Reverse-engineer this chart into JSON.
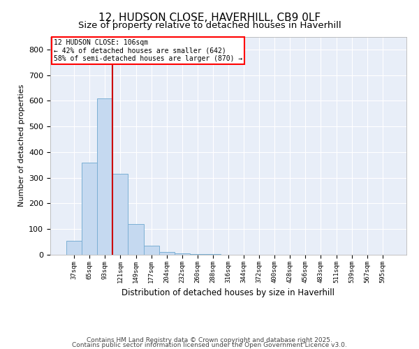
{
  "title": "12, HUDSON CLOSE, HAVERHILL, CB9 0LF",
  "subtitle": "Size of property relative to detached houses in Haverhill",
  "xlabel": "Distribution of detached houses by size in Haverhill",
  "ylabel": "Number of detached properties",
  "bins": [
    "37sqm",
    "65sqm",
    "93sqm",
    "121sqm",
    "149sqm",
    "177sqm",
    "204sqm",
    "232sqm",
    "260sqm",
    "288sqm",
    "316sqm",
    "344sqm",
    "372sqm",
    "400sqm",
    "428sqm",
    "456sqm",
    "483sqm",
    "511sqm",
    "539sqm",
    "567sqm",
    "595sqm"
  ],
  "values": [
    55,
    360,
    610,
    315,
    120,
    35,
    12,
    5,
    3,
    2,
    1,
    1,
    0,
    0,
    0,
    0,
    0,
    0,
    0,
    0,
    0
  ],
  "bar_color": "#c5d9f0",
  "bar_edge_color": "#7bafd4",
  "vline_color": "#cc0000",
  "vline_x": 2.5,
  "annotation_text": "12 HUDSON CLOSE: 106sqm\n← 42% of detached houses are smaller (642)\n58% of semi-detached houses are larger (870) →",
  "ylim": [
    0,
    850
  ],
  "yticks": [
    0,
    100,
    200,
    300,
    400,
    500,
    600,
    700,
    800
  ],
  "background_color": "#e8eef8",
  "grid_color": "#ffffff",
  "footer_line1": "Contains HM Land Registry data © Crown copyright and database right 2025.",
  "footer_line2": "Contains public sector information licensed under the Open Government Licence v3.0.",
  "title_fontsize": 11,
  "subtitle_fontsize": 9.5,
  "xlabel_fontsize": 8.5,
  "ylabel_fontsize": 8,
  "footer_fontsize": 6.5
}
